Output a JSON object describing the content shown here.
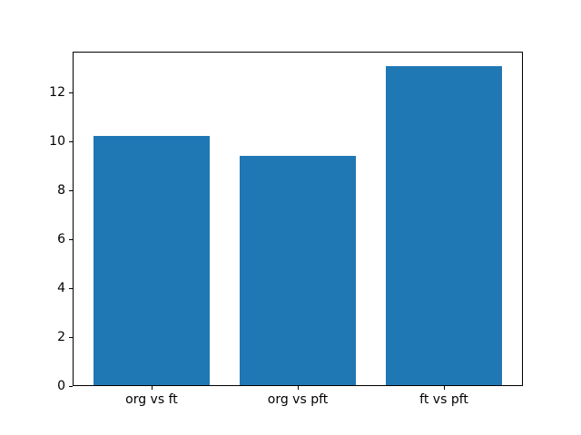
{
  "figure": {
    "background": "#ffffff",
    "spine_color": "#000000",
    "tick_label_color": "#000000"
  },
  "chart_data": {
    "type": "bar",
    "categories": [
      "org vs ft",
      "org vs pft",
      "ft vs pft"
    ],
    "values": [
      10.2,
      9.37,
      13.04
    ],
    "title": "",
    "xlabel": "",
    "ylabel": "",
    "ylim": [
      0,
      13.67
    ],
    "yticks": [
      0,
      2,
      4,
      6,
      8,
      10,
      12
    ],
    "xlim": [
      -0.54,
      2.54
    ],
    "bar_positions": [
      0,
      1,
      2
    ],
    "bar_width": 0.8,
    "bar_color": "#1f77b4",
    "grid": false,
    "legend": false
  }
}
